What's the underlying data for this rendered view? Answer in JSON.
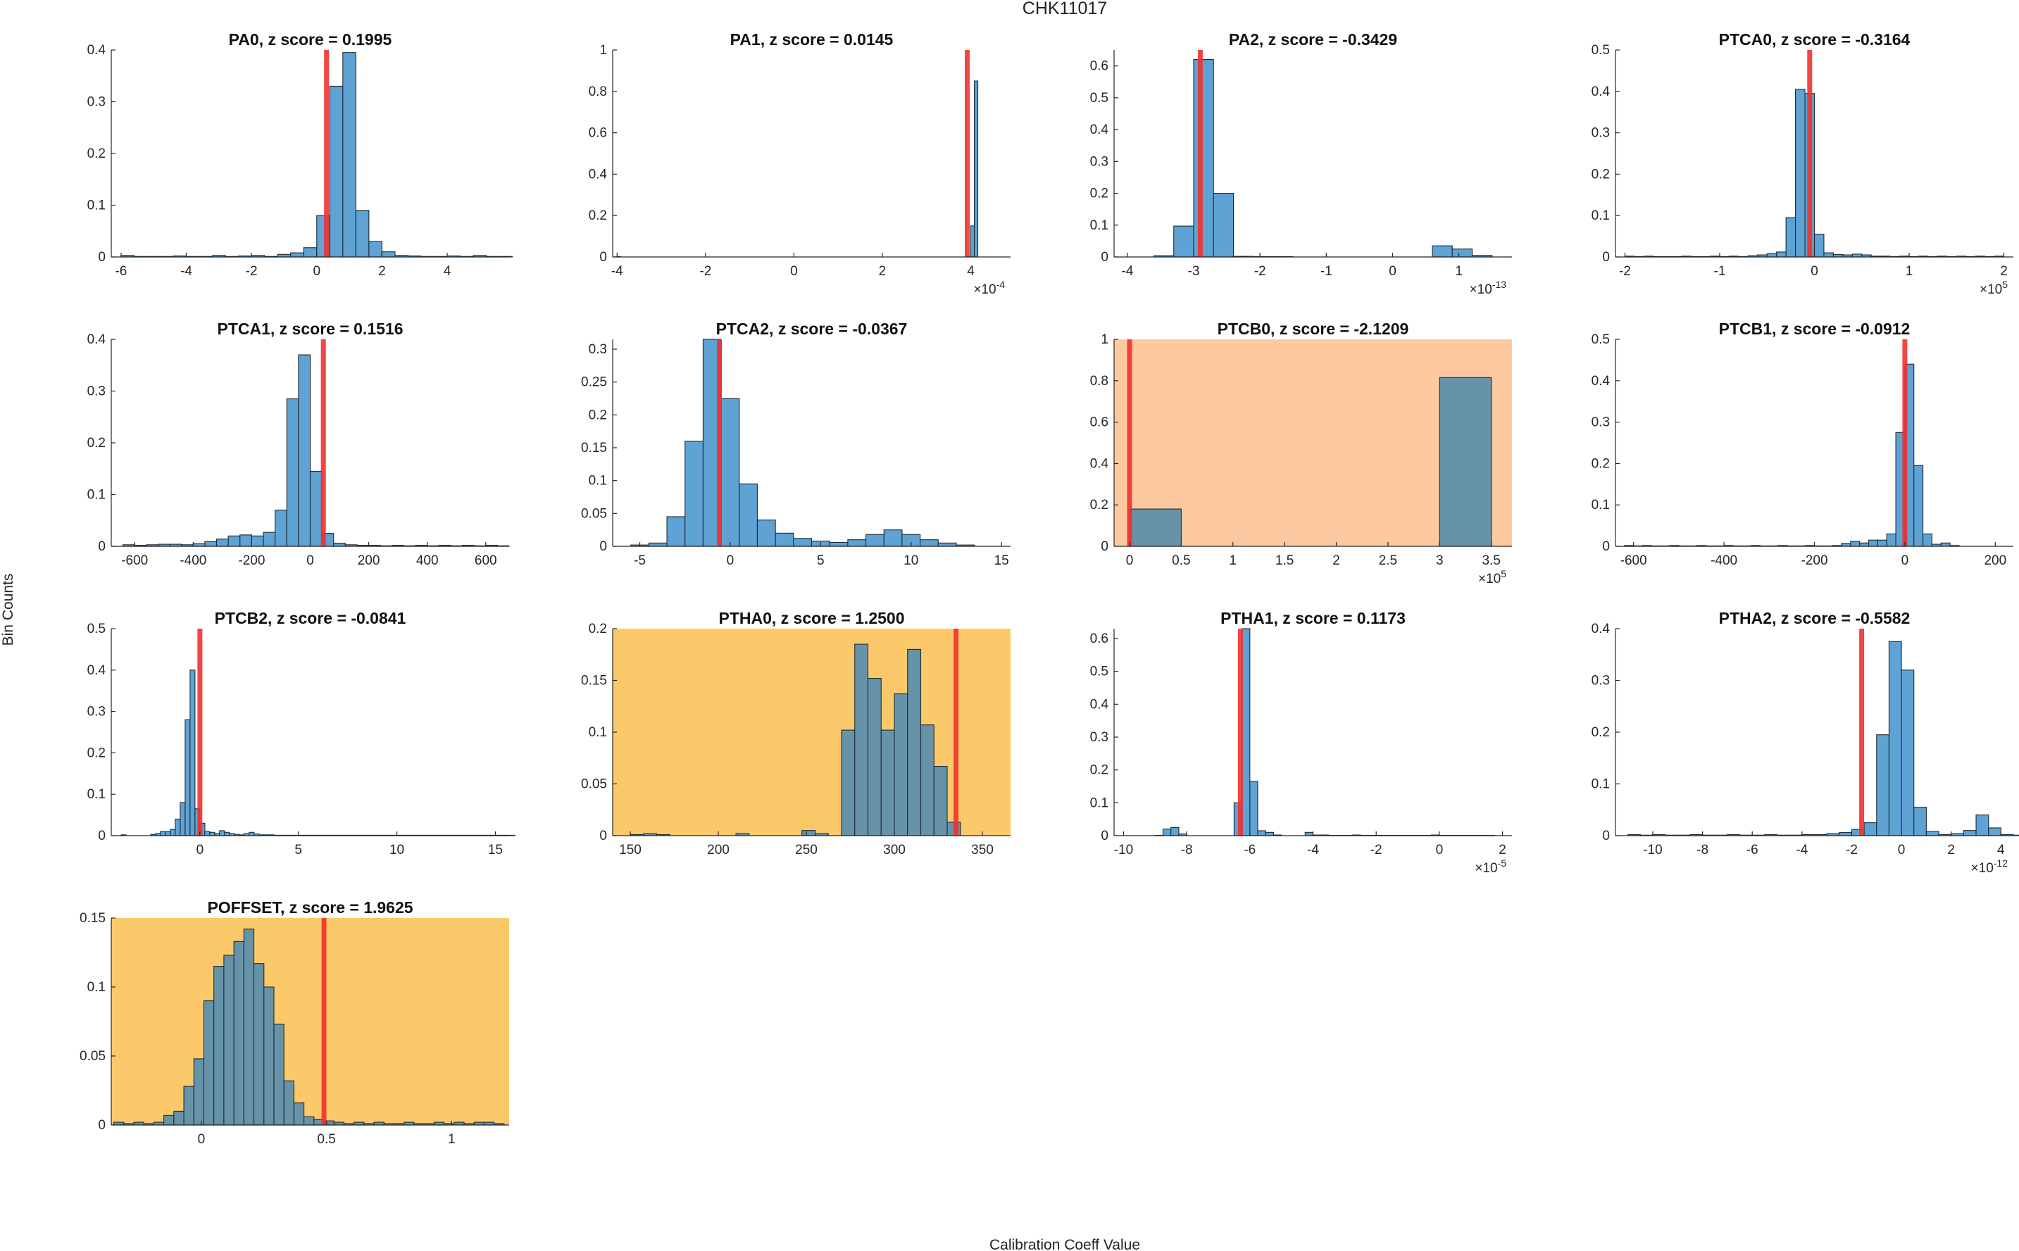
{
  "figure": {
    "suptitle": "CHK11017",
    "ylabel": "Bin Counts",
    "xlabel": "Calibration Coeff Value"
  },
  "colors": {
    "bar": "#5fa2d4",
    "bar_edge": "#1e2b36",
    "marker": "#f0322f",
    "highlight_orange": "#fcc9a0",
    "highlight_gold": "#fcc96a",
    "axis": "#262626"
  },
  "chart_data": [
    {
      "type": "bar",
      "title": "PA0, z score = 0.1995",
      "xlim": [
        -6.3,
        5.9
      ],
      "ylim": [
        0,
        0.4
      ],
      "xticks": [
        -6,
        -4,
        -2,
        0,
        2,
        4
      ],
      "xticklabels": [
        "-6",
        "-4",
        "-2",
        "0",
        "2",
        "4"
      ],
      "yticks": [
        0,
        0.1,
        0.2,
        0.3,
        0.4
      ],
      "yticklabels": [
        "0",
        "0.1",
        "0.2",
        "0.3",
        "0.4"
      ],
      "bin_start": -6.0,
      "bin_width": 0.4,
      "values": [
        0.003,
        0.001,
        0.001,
        0.001,
        0.002,
        0.001,
        0.001,
        0.003,
        0.001,
        0.002,
        0.003,
        0.001,
        0.005,
        0.008,
        0.018,
        0.08,
        0.33,
        0.395,
        0.09,
        0.03,
        0.01,
        0.003,
        0.002,
        0.001,
        0.001,
        0.002,
        0.001,
        0.003,
        0.001,
        0.001
      ],
      "marker": 0.3,
      "highlight": null,
      "exponent": null
    },
    {
      "type": "bar",
      "title": "PA1, z score = 0.0145",
      "xlim": [
        -4.1,
        4.9
      ],
      "ylim": [
        0,
        1
      ],
      "xticks": [
        -4,
        -2,
        0,
        2,
        4
      ],
      "xticklabels": [
        "-4",
        "-2",
        "0",
        "2",
        "4"
      ],
      "yticks": [
        0,
        0.2,
        0.4,
        0.6,
        0.8,
        1
      ],
      "yticklabels": [
        "0",
        "0.2",
        "0.4",
        "0.6",
        "0.8",
        "1"
      ],
      "bin_start": -4.0,
      "bin_width": 0.08,
      "values": [
        0.002,
        0,
        0,
        0,
        0,
        0,
        0,
        0,
        0,
        0,
        0,
        0,
        0,
        0,
        0,
        0,
        0,
        0,
        0,
        0,
        0,
        0,
        0,
        0,
        0,
        0,
        0,
        0,
        0,
        0,
        0,
        0,
        0,
        0,
        0,
        0,
        0,
        0,
        0,
        0,
        0,
        0,
        0,
        0,
        0,
        0,
        0,
        0,
        0,
        0,
        0,
        0,
        0,
        0,
        0,
        0,
        0,
        0,
        0,
        0,
        0,
        0,
        0,
        0,
        0,
        0,
        0,
        0,
        0,
        0,
        0,
        0,
        0,
        0,
        0,
        0,
        0,
        0,
        0,
        0,
        0,
        0,
        0,
        0,
        0,
        0,
        0,
        0,
        0,
        0,
        0,
        0,
        0,
        0,
        0,
        0,
        0,
        0,
        0,
        0.001,
        0.15,
        0.85
      ],
      "marker": 3.92,
      "highlight": null,
      "exponent": "-4"
    },
    {
      "type": "bar",
      "title": "PA2, z score = -0.3429",
      "xlim": [
        -4.2,
        1.8
      ],
      "ylim": [
        0,
        0.65
      ],
      "xticks": [
        -4,
        -3,
        -2,
        -1,
        0,
        1
      ],
      "xticklabels": [
        "-4",
        "-3",
        "-2",
        "-1",
        "0",
        "1"
      ],
      "yticks": [
        0,
        0.1,
        0.2,
        0.3,
        0.4,
        0.5,
        0.6
      ],
      "yticklabels": [
        "0",
        "0.1",
        "0.2",
        "0.3",
        "0.4",
        "0.5",
        "0.6"
      ],
      "bin_start": -3.6,
      "bin_width": 0.3,
      "values": [
        0.004,
        0.097,
        0.62,
        0.2,
        0.002,
        0.001,
        0.001,
        0,
        0,
        0,
        0,
        0,
        0,
        0,
        0.035,
        0.025,
        0.005
      ],
      "marker": -2.9,
      "highlight": null,
      "exponent": "-13"
    },
    {
      "type": "bar",
      "title": "PTCA0, z score = -0.3164",
      "xlim": [
        -2.1,
        2.1
      ],
      "ylim": [
        0,
        0.5
      ],
      "xticks": [
        -2,
        -1,
        0,
        1,
        2
      ],
      "xticklabels": [
        "-2",
        "-1",
        "0",
        "1",
        "2"
      ],
      "yticks": [
        0,
        0.1,
        0.2,
        0.3,
        0.4,
        0.5
      ],
      "yticklabels": [
        "0",
        "0.1",
        "0.2",
        "0.3",
        "0.4",
        "0.5"
      ],
      "bin_start": -2.0,
      "bin_width": 0.1,
      "values": [
        0.002,
        0.001,
        0.002,
        0.001,
        0.001,
        0.001,
        0.002,
        0.001,
        0.001,
        0.002,
        0.001,
        0.002,
        0.001,
        0.003,
        0.005,
        0.008,
        0.012,
        0.095,
        0.405,
        0.395,
        0.055,
        0.01,
        0.006,
        0.005,
        0.007,
        0.005,
        0.002,
        0.002,
        0.001,
        0.002,
        0.001,
        0.002,
        0.001,
        0.002,
        0.001,
        0.002,
        0.001,
        0.002,
        0.001,
        0.002
      ],
      "marker": -0.05,
      "highlight": null,
      "exponent": "5"
    },
    {
      "type": "bar",
      "title": "PTCA1, z score = 0.1516",
      "xlim": [
        -680,
        680
      ],
      "ylim": [
        0,
        0.4
      ],
      "xticks": [
        -600,
        -400,
        -200,
        0,
        200,
        400,
        600
      ],
      "xticklabels": [
        "-600",
        "-400",
        "-200",
        "0",
        "200",
        "400",
        "600"
      ],
      "yticks": [
        0,
        0.1,
        0.2,
        0.3,
        0.4
      ],
      "yticklabels": [
        "0",
        "0.1",
        "0.2",
        "0.3",
        "0.4"
      ],
      "bin_start": -640,
      "bin_width": 40,
      "values": [
        0.003,
        0.002,
        0.003,
        0.004,
        0.004,
        0.003,
        0.005,
        0.009,
        0.014,
        0.02,
        0.022,
        0.02,
        0.027,
        0.07,
        0.285,
        0.37,
        0.145,
        0.025,
        0.006,
        0.003,
        0.002,
        0.002,
        0.001,
        0.002,
        0.001,
        0.002,
        0.001,
        0.002,
        0.001,
        0.002,
        0.001,
        0.002,
        0.001
      ],
      "marker": 45,
      "highlight": null,
      "exponent": null
    },
    {
      "type": "bar",
      "title": "PTCA2, z score = -0.0367",
      "xlim": [
        -6.5,
        15.5
      ],
      "ylim": [
        0,
        0.315
      ],
      "xticks": [
        -5,
        0,
        5,
        10,
        15
      ],
      "xticklabels": [
        "-5",
        "0",
        "5",
        "10",
        "15"
      ],
      "yticks": [
        0,
        0.05,
        0.1,
        0.15,
        0.2,
        0.25,
        0.3
      ],
      "yticklabels": [
        "0",
        "0.05",
        "0.1",
        "0.15",
        "0.2",
        "0.25",
        "0.3"
      ],
      "bin_start": -5.5,
      "bin_width": 1,
      "values": [
        0.002,
        0.005,
        0.045,
        0.16,
        0.315,
        0.225,
        0.095,
        0.04,
        0.02,
        0.012,
        0.008,
        0.006,
        0.01,
        0.018,
        0.025,
        0.018,
        0.01,
        0.005,
        0.002
      ],
      "marker": -0.6,
      "highlight": null,
      "exponent": null
    },
    {
      "type": "bar",
      "title": "PTCB0, z score = -2.1209",
      "xlim": [
        -0.15,
        3.7
      ],
      "ylim": [
        0,
        1
      ],
      "xticks": [
        0,
        0.5,
        1,
        1.5,
        2,
        2.5,
        3,
        3.5
      ],
      "xticklabels": [
        "0",
        "0.5",
        "1",
        "1.5",
        "2",
        "2.5",
        "3",
        "3.5"
      ],
      "yticks": [
        0,
        0.2,
        0.4,
        0.6,
        0.8,
        1
      ],
      "yticklabels": [
        "0",
        "0.2",
        "0.4",
        "0.6",
        "0.8",
        "1"
      ],
      "bin_start": 0,
      "bin_width": 0.5,
      "values": [
        0.18,
        0,
        0,
        0,
        0,
        0,
        0.815
      ],
      "marker": 0,
      "highlight": "orange",
      "exponent": "5"
    },
    {
      "type": "bar",
      "title": "PTCB1, z score = -0.0912",
      "xlim": [
        -640,
        240
      ],
      "ylim": [
        0,
        0.5
      ],
      "xticks": [
        -600,
        -400,
        -200,
        0,
        200
      ],
      "xticklabels": [
        "-600",
        "-400",
        "-200",
        "0",
        "200"
      ],
      "yticks": [
        0,
        0.1,
        0.2,
        0.3,
        0.4,
        0.5
      ],
      "yticklabels": [
        "0",
        "0.1",
        "0.2",
        "0.3",
        "0.4",
        "0.5"
      ],
      "bin_start": -620,
      "bin_width": 20,
      "values": [
        0.002,
        0.001,
        0.002,
        0.001,
        0.001,
        0.002,
        0.001,
        0.001,
        0.002,
        0.001,
        0.001,
        0.002,
        0.001,
        0.001,
        0.002,
        0.001,
        0.001,
        0.002,
        0.001,
        0.001,
        0.002,
        0.001,
        0.001,
        0.002,
        0.007,
        0.012,
        0.008,
        0.015,
        0.015,
        0.03,
        0.275,
        0.44,
        0.195,
        0.03,
        0.005,
        0.008,
        0.002
      ],
      "marker": 0,
      "highlight": null,
      "exponent": null
    },
    {
      "type": "bar",
      "title": "PTCB2, z score = -0.0841",
      "xlim": [
        -4.5,
        15.7
      ],
      "ylim": [
        0,
        0.5
      ],
      "xticks": [
        0,
        5,
        10,
        15
      ],
      "xticklabels": [
        "0",
        "5",
        "10",
        "15"
      ],
      "yticks": [
        0,
        0.1,
        0.2,
        0.3,
        0.4,
        0.5
      ],
      "yticklabels": [
        "0",
        "0.1",
        "0.2",
        "0.3",
        "0.4",
        "0.5"
      ],
      "bin_start": -4,
      "bin_width": 0.25,
      "values": [
        0.002,
        0,
        0,
        0,
        0,
        0,
        0.003,
        0.005,
        0.01,
        0.01,
        0.015,
        0.04,
        0.08,
        0.28,
        0.4,
        0.065,
        0.03,
        0.01,
        0.008,
        0.005,
        0.012,
        0.008,
        0.005,
        0.003,
        0.002,
        0.005,
        0.008,
        0.004,
        0.002,
        0.002,
        0.002,
        0.001,
        0.001,
        0.001,
        0.001,
        0.001,
        0.001,
        0.001,
        0.001,
        0.001,
        0.001,
        0.001,
        0.001,
        0.001,
        0.001,
        0.001,
        0.001,
        0.001,
        0.001,
        0.001,
        0.001,
        0.001,
        0.001,
        0.001,
        0.001,
        0.001,
        0.001,
        0.001,
        0.001,
        0.001,
        0.001,
        0.001,
        0.001,
        0.001,
        0.001,
        0.001,
        0.001,
        0.001,
        0.001,
        0.001,
        0.001,
        0.001,
        0.001,
        0.001,
        0.001,
        0.001,
        0.001,
        0.001,
        0.001,
        0.001
      ],
      "marker": 0,
      "highlight": null,
      "exponent": null
    },
    {
      "type": "bar",
      "title": "PTHA0, z score = 1.2500",
      "xlim": [
        140,
        366
      ],
      "ylim": [
        0,
        0.2
      ],
      "xticks": [
        150,
        200,
        250,
        300,
        350
      ],
      "xticklabels": [
        "150",
        "200",
        "250",
        "300",
        "350"
      ],
      "yticks": [
        0,
        0.05,
        0.1,
        0.15,
        0.2
      ],
      "yticklabels": [
        "0",
        "0.05",
        "0.1",
        "0.15",
        "0.2"
      ],
      "bin_start": 150,
      "bin_width": 7.5,
      "values": [
        0.001,
        0.002,
        0.001,
        0,
        0,
        0,
        0,
        0,
        0.002,
        0,
        0,
        0,
        0,
        0.005,
        0.002,
        0,
        0.102,
        0.185,
        0.152,
        0.102,
        0.137,
        0.18,
        0.107,
        0.067,
        0.013
      ],
      "marker": 335,
      "highlight": "gold",
      "exponent": null
    },
    {
      "type": "bar",
      "title": "PTHA1, z score = 0.1173",
      "xlim": [
        -10.3,
        2.3
      ],
      "ylim": [
        0,
        0.63
      ],
      "xticks": [
        -10,
        -8,
        -6,
        -4,
        -2,
        0,
        2
      ],
      "xticklabels": [
        "-10",
        "-8",
        "-6",
        "-4",
        "-2",
        "0",
        "2"
      ],
      "yticks": [
        0,
        0.1,
        0.2,
        0.3,
        0.4,
        0.5,
        0.6
      ],
      "yticklabels": [
        "0",
        "0.1",
        "0.2",
        "0.3",
        "0.4",
        "0.5",
        "0.6"
      ],
      "bin_start": -10,
      "bin_width": 0.25,
      "values": [
        0,
        0,
        0,
        0,
        0.001,
        0.02,
        0.025,
        0.005,
        0,
        0,
        0,
        0,
        0,
        0,
        0.1,
        0.63,
        0.165,
        0.015,
        0.01,
        0.002,
        0,
        0,
        0,
        0.01,
        0.002,
        0.002,
        0.001,
        0.001,
        0.001,
        0.002,
        0.001,
        0.001,
        0.001,
        0.001,
        0.001,
        0.001,
        0.001,
        0.001,
        0.001,
        0.002,
        0.001,
        0.001,
        0.001,
        0.001,
        0.001,
        0.001,
        0.001
      ],
      "marker": -6.3,
      "highlight": null,
      "exponent": "-5"
    },
    {
      "type": "bar",
      "title": "PTHA2, z score = -0.5582",
      "xlim": [
        -11.5,
        4.5
      ],
      "ylim": [
        0,
        0.4
      ],
      "xticks": [
        -10,
        -8,
        -6,
        -4,
        -2,
        0,
        2,
        4
      ],
      "xticklabels": [
        "-10",
        "-8",
        "-6",
        "-4",
        "-2",
        "0",
        "2",
        "4"
      ],
      "yticks": [
        0,
        0.1,
        0.2,
        0.3,
        0.4
      ],
      "yticklabels": [
        "0",
        "0.1",
        "0.2",
        "0.3",
        "0.4"
      ],
      "bin_start": -11,
      "bin_width": 0.5,
      "values": [
        0.002,
        0.001,
        0.002,
        0.001,
        0.001,
        0.002,
        0.001,
        0.001,
        0.002,
        0.001,
        0.001,
        0.002,
        0.001,
        0.001,
        0.002,
        0.002,
        0.004,
        0.006,
        0.012,
        0.025,
        0.195,
        0.375,
        0.32,
        0.055,
        0.008,
        0.002,
        0.004,
        0.01,
        0.04,
        0.015,
        0.002,
        0.001
      ],
      "marker": -1.6,
      "highlight": null,
      "exponent": "-12"
    },
    {
      "type": "bar",
      "title": "POFFSET, z score = 1.9625",
      "xlim": [
        -0.36,
        1.23
      ],
      "ylim": [
        0,
        0.15
      ],
      "xticks": [
        0,
        0.5,
        1
      ],
      "xticklabels": [
        "0",
        "0.5",
        "1"
      ],
      "yticks": [
        0,
        0.05,
        0.1,
        0.15
      ],
      "yticklabels": [
        "0",
        "0.05",
        "0.1",
        "0.15"
      ],
      "bin_start": -0.35,
      "bin_width": 0.04,
      "values": [
        0.002,
        0.001,
        0.002,
        0.001,
        0.002,
        0.007,
        0.01,
        0.028,
        0.048,
        0.09,
        0.115,
        0.123,
        0.133,
        0.142,
        0.117,
        0.1,
        0.073,
        0.032,
        0.016,
        0.006,
        0.004,
        0.003,
        0.002,
        0.001,
        0.002,
        0.001,
        0.002,
        0.001,
        0.001,
        0.002,
        0.001,
        0.001,
        0.002,
        0.001,
        0.002,
        0.001,
        0.002,
        0.002,
        0.001
      ],
      "marker": 0.49,
      "highlight": "gold",
      "exponent": null
    }
  ]
}
